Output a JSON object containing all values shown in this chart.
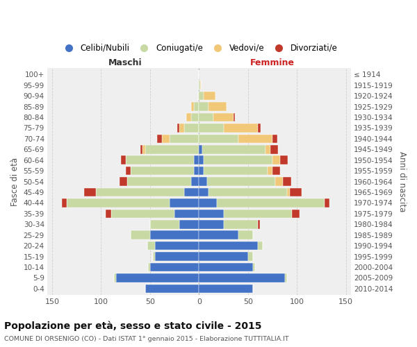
{
  "age_groups": [
    "0-4",
    "5-9",
    "10-14",
    "15-19",
    "20-24",
    "25-29",
    "30-34",
    "35-39",
    "40-44",
    "45-49",
    "50-54",
    "55-59",
    "60-64",
    "65-69",
    "70-74",
    "75-79",
    "80-84",
    "85-89",
    "90-94",
    "95-99",
    "100+"
  ],
  "birth_years": [
    "2010-2014",
    "2005-2009",
    "2000-2004",
    "1995-1999",
    "1990-1994",
    "1985-1989",
    "1980-1984",
    "1975-1979",
    "1970-1974",
    "1965-1969",
    "1960-1964",
    "1955-1959",
    "1950-1954",
    "1945-1949",
    "1940-1944",
    "1935-1939",
    "1930-1934",
    "1925-1929",
    "1920-1924",
    "1915-1919",
    "≤ 1914"
  ],
  "colors": {
    "celibe": "#4472c4",
    "coniugato": "#c8d9a4",
    "vedovo": "#f0c878",
    "divorziato": "#c0392b"
  },
  "m_cel": [
    55,
    85,
    50,
    45,
    45,
    50,
    20,
    25,
    30,
    15,
    8,
    5,
    5,
    0,
    0,
    0,
    0,
    0,
    0,
    0,
    0
  ],
  "m_con": [
    0,
    2,
    2,
    2,
    8,
    20,
    30,
    65,
    105,
    90,
    65,
    65,
    70,
    55,
    30,
    15,
    8,
    5,
    1,
    0,
    0
  ],
  "m_ved": [
    0,
    0,
    0,
    0,
    0,
    0,
    0,
    0,
    0,
    0,
    0,
    0,
    0,
    3,
    8,
    5,
    5,
    3,
    0,
    0,
    0
  ],
  "m_div": [
    0,
    0,
    0,
    0,
    0,
    0,
    0,
    5,
    5,
    12,
    8,
    5,
    5,
    2,
    5,
    2,
    0,
    0,
    0,
    0,
    0
  ],
  "f_nub": [
    55,
    88,
    55,
    50,
    60,
    40,
    25,
    25,
    18,
    10,
    8,
    5,
    5,
    3,
    0,
    0,
    0,
    0,
    0,
    0,
    0
  ],
  "f_con": [
    0,
    2,
    2,
    5,
    5,
    15,
    35,
    70,
    110,
    80,
    70,
    65,
    70,
    65,
    40,
    25,
    15,
    10,
    5,
    1,
    0
  ],
  "f_ved": [
    0,
    0,
    0,
    0,
    0,
    0,
    0,
    0,
    0,
    3,
    8,
    5,
    8,
    5,
    35,
    35,
    20,
    18,
    12,
    1,
    0
  ],
  "f_div": [
    0,
    0,
    0,
    0,
    0,
    0,
    2,
    8,
    5,
    12,
    8,
    8,
    8,
    8,
    5,
    3,
    2,
    0,
    0,
    0,
    0
  ],
  "title": "Popolazione per età, sesso e stato civile - 2015",
  "subtitle": "COMUNE DI ORSENIGO (CO) - Dati ISTAT 1° gennaio 2015 - Elaborazione TUTTITALIA.IT",
  "label_maschi": "Maschi",
  "label_femmine": "Femmine",
  "ylabel_left": "Fasce di età",
  "ylabel_right": "Anni di nascita",
  "legend_labels": [
    "Celibi/Nubili",
    "Coniugati/e",
    "Vedovi/e",
    "Divorziati/e"
  ],
  "xlim": 155,
  "bg_color": "#efefef"
}
